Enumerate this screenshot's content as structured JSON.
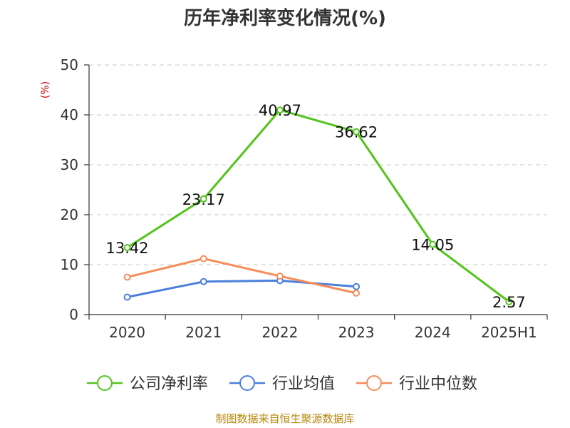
{
  "chart_data": {
    "type": "line",
    "title": "历年净利率变化情况(%)",
    "ylabel": "(%)",
    "categories": [
      "2020",
      "2021",
      "2022",
      "2023",
      "2024",
      "2025H1"
    ],
    "ylim": [
      0,
      50
    ],
    "yticks": [
      "0",
      "10",
      "20",
      "30",
      "40",
      "50"
    ],
    "grid": true,
    "legend_position": "bottom",
    "series": [
      {
        "name": "公司净利率",
        "color": "#52c41a",
        "values": [
          13.42,
          23.17,
          40.97,
          36.62,
          14.05,
          2.57
        ],
        "labels": [
          "13.42",
          "23.17",
          "40.97",
          "36.62",
          "14.05",
          "2.57"
        ]
      },
      {
        "name": "行业均值",
        "color": "#4a7fdc",
        "values": [
          3.5,
          6.6,
          6.8,
          5.6,
          null,
          null
        ]
      },
      {
        "name": "行业中位数",
        "color": "#f58d5a",
        "values": [
          7.5,
          11.2,
          7.7,
          4.3,
          null,
          null
        ]
      }
    ],
    "source": "制图数据来自恒生聚源数据库"
  }
}
